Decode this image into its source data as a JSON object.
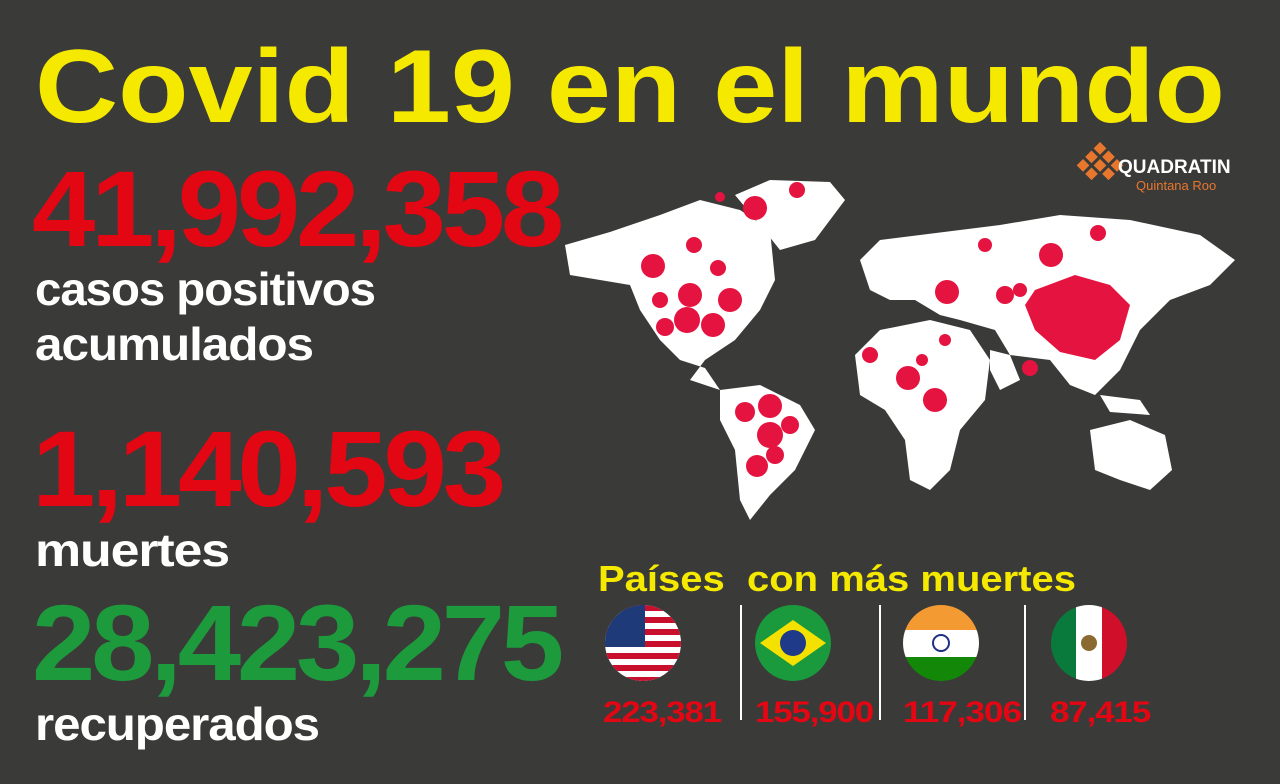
{
  "header": {
    "title": "Covid 19 en el mundo",
    "logo": {
      "name": "QUADRATIN",
      "region": "Quintana Roo"
    }
  },
  "stats": [
    {
      "value": "41,992,358",
      "label_lines": [
        "casos positivos",
        "acumulados"
      ]
    },
    {
      "value": "1,140,593",
      "label_lines": [
        "muertes"
      ]
    },
    {
      "value": "28,423,275",
      "label_lines": [
        "recuperados"
      ]
    }
  ],
  "ranking": {
    "title": "Países  con más muertes",
    "deaths": [
      "223,381",
      "155,900",
      "117,306",
      "87,415"
    ]
  }
}
